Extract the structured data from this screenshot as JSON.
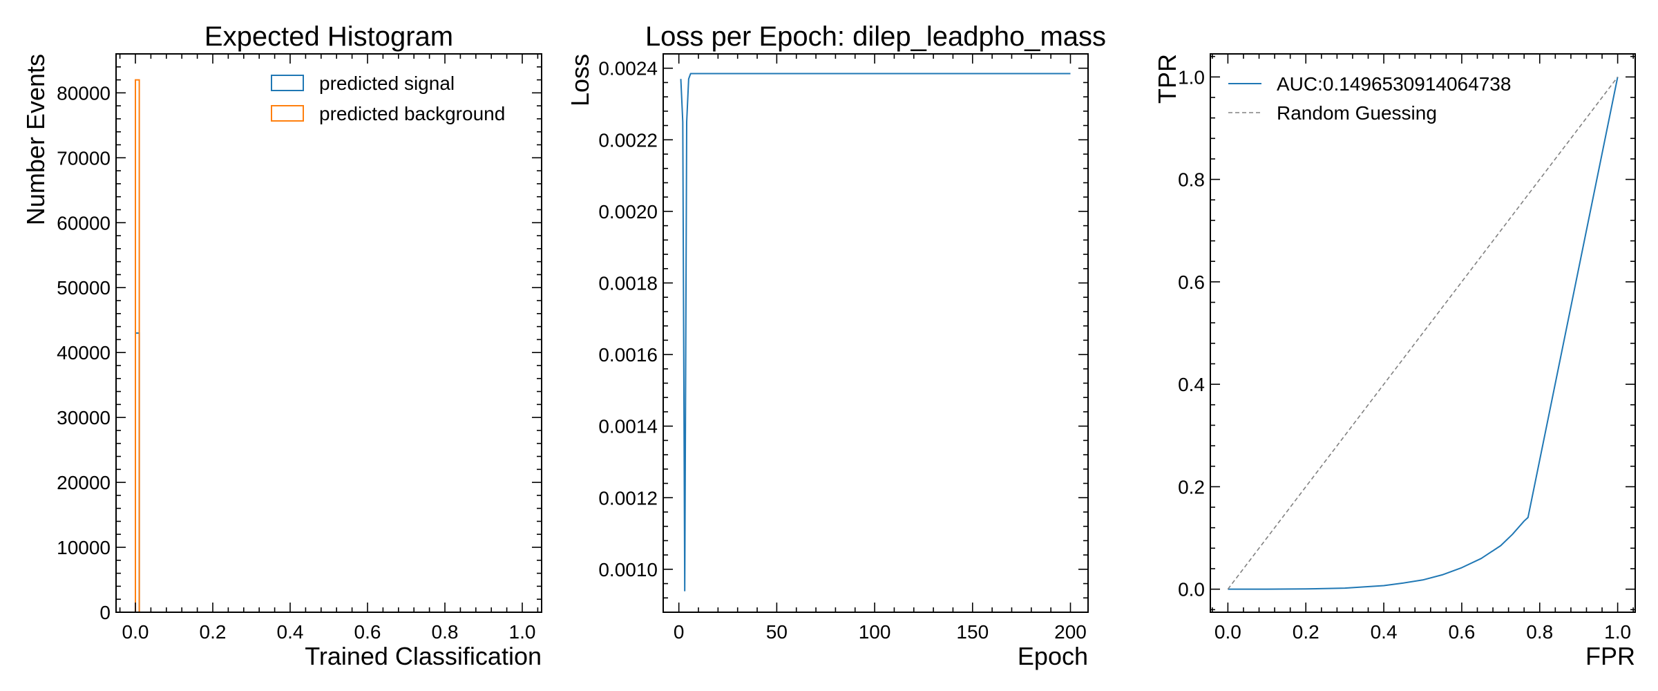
{
  "colors": {
    "signal": "#1f77b4",
    "background": "#ff7f0e",
    "random": "#808080",
    "axes": "#000000"
  },
  "chart_data": [
    {
      "type": "histogram",
      "title": "Expected Histogram",
      "xlabel": "Trained Classification",
      "ylabel": "Number Events",
      "xlim": [
        -0.05,
        1.05
      ],
      "ylim": [
        0,
        86000
      ],
      "xticks": [
        0.0,
        0.2,
        0.4,
        0.6,
        0.8,
        1.0
      ],
      "xtick_labels": [
        "0.0",
        "0.2",
        "0.4",
        "0.6",
        "0.8",
        "1.0"
      ],
      "yticks": [
        0,
        10000,
        20000,
        30000,
        40000,
        50000,
        60000,
        70000,
        80000
      ],
      "ytick_labels": [
        "0",
        "10000",
        "20000",
        "30000",
        "40000",
        "50000",
        "60000",
        "70000",
        "80000"
      ],
      "legend_position": "top-right",
      "series": [
        {
          "name": "predicted signal",
          "color_key": "signal",
          "bins": [
            [
              0.0,
              0.01,
              43000
            ]
          ]
        },
        {
          "name": "predicted background",
          "color_key": "background",
          "bins": [
            [
              0.0,
              0.01,
              82000
            ]
          ]
        }
      ]
    },
    {
      "type": "line",
      "title": "Loss per Epoch: dilep_leadpho_mass",
      "xlabel": "Epoch",
      "ylabel": "Loss",
      "xlim": [
        -8,
        209
      ],
      "ylim": [
        0.00088,
        0.00244
      ],
      "xticks": [
        0,
        50,
        100,
        150,
        200
      ],
      "xtick_labels": [
        "0",
        "50",
        "100",
        "150",
        "200"
      ],
      "yticks": [
        0.001,
        0.0012,
        0.0014,
        0.0016,
        0.0018,
        0.002,
        0.0022,
        0.0024
      ],
      "ytick_labels": [
        "0.0010",
        "0.0012",
        "0.0014",
        "0.0016",
        "0.0018",
        "0.0020",
        "0.0022",
        "0.0024"
      ],
      "series": [
        {
          "color_key": "signal",
          "x": [
            1,
            2,
            3,
            4,
            5,
            6,
            10,
            50,
            100,
            150,
            200
          ],
          "y": [
            0.00237,
            0.00225,
            0.00094,
            0.00225,
            0.00237,
            0.002385,
            0.002385,
            0.002385,
            0.002385,
            0.002385,
            0.002385
          ]
        }
      ]
    },
    {
      "type": "line",
      "title": "",
      "xlabel": "FPR",
      "ylabel": "TPR",
      "xlim": [
        -0.045,
        1.045
      ],
      "ylim": [
        -0.045,
        1.045
      ],
      "xticks": [
        0.0,
        0.2,
        0.4,
        0.6,
        0.8,
        1.0
      ],
      "xtick_labels": [
        "0.0",
        "0.2",
        "0.4",
        "0.6",
        "0.8",
        "1.0"
      ],
      "yticks": [
        0.0,
        0.2,
        0.4,
        0.6,
        0.8,
        1.0
      ],
      "ytick_labels": [
        "0.0",
        "0.2",
        "0.4",
        "0.6",
        "0.8",
        "1.0"
      ],
      "legend_position": "top-left",
      "series": [
        {
          "name": "AUC:0.1496530914064738",
          "color_key": "signal",
          "dash": false,
          "x": [
            0,
            0.1,
            0.2,
            0.3,
            0.4,
            0.45,
            0.5,
            0.55,
            0.6,
            0.65,
            0.7,
            0.73,
            0.76,
            0.77,
            1.0
          ],
          "y": [
            0,
            0,
            0.0005,
            0.002,
            0.007,
            0.012,
            0.018,
            0.028,
            0.042,
            0.06,
            0.085,
            0.107,
            0.133,
            0.14,
            1.0
          ]
        },
        {
          "name": "Random Guessing",
          "color_key": "random",
          "dash": true,
          "x": [
            0,
            1
          ],
          "y": [
            0,
            1
          ]
        }
      ]
    }
  ]
}
